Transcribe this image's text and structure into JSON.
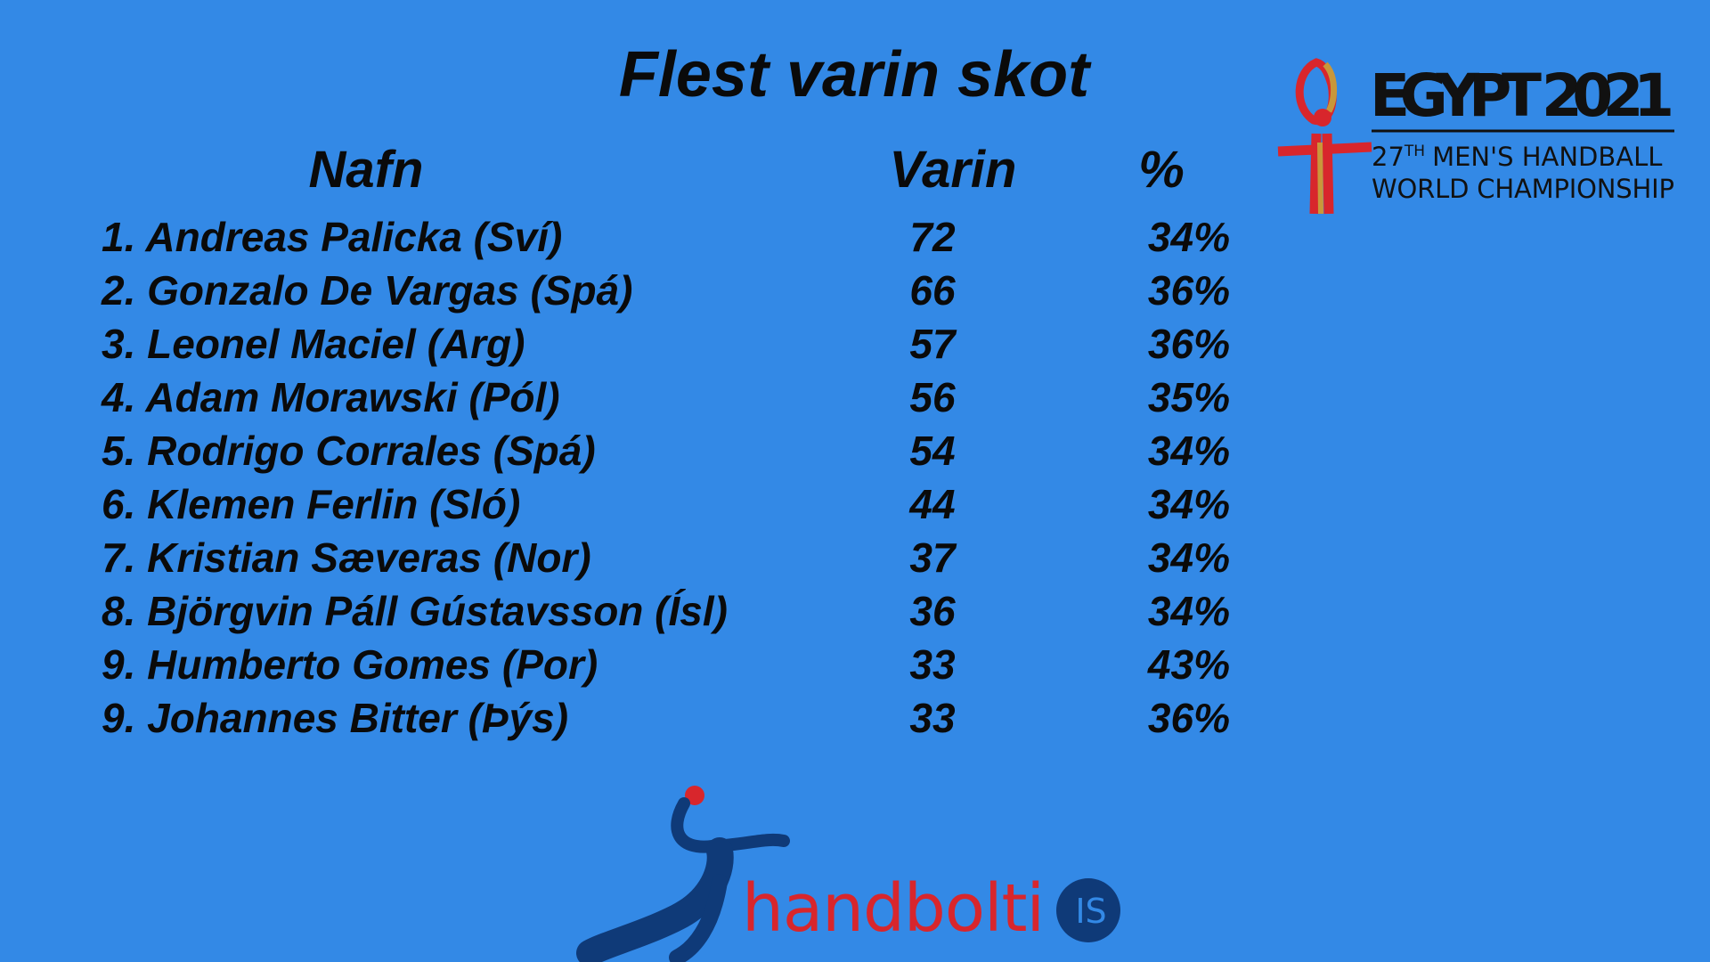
{
  "title": "Flest varin skot",
  "table": {
    "headers": [
      "Nafn",
      "Varin",
      "%"
    ],
    "rows": [
      [
        "1. Andreas Palicka (Sví)",
        72,
        "34%"
      ],
      [
        "2. Gonzalo De Vargas (Spá)",
        66,
        "36%"
      ],
      [
        "3. Leonel Maciel (Arg)",
        57,
        "36%"
      ],
      [
        "4. Adam Morawski (Pól)",
        56,
        "35%"
      ],
      [
        "5. Rodrigo Corrales (Spá)",
        54,
        "34%"
      ],
      [
        "6. Klemen Ferlin (Sló)",
        44,
        "34%"
      ],
      [
        "7. Kristian Sæveras (Nor)",
        37,
        "34%"
      ],
      [
        "8. Björgvin Páll Gústavsson (Ísl)",
        36,
        "34%"
      ],
      [
        "9. Humberto Gomes (Por)",
        33,
        "43%"
      ],
      [
        "9. Johannes Bitter (Þýs)",
        33,
        "36%"
      ]
    ]
  },
  "egypt_logo": {
    "title": "EGYPT 2021",
    "edition": "27",
    "edition_suffix": "TH",
    "line1": "MEN'S HANDBALL",
    "line2": "WORLD CHAMPIONSHIP"
  },
  "site_logo": {
    "name": "handbolti",
    "domain": "IS"
  }
}
